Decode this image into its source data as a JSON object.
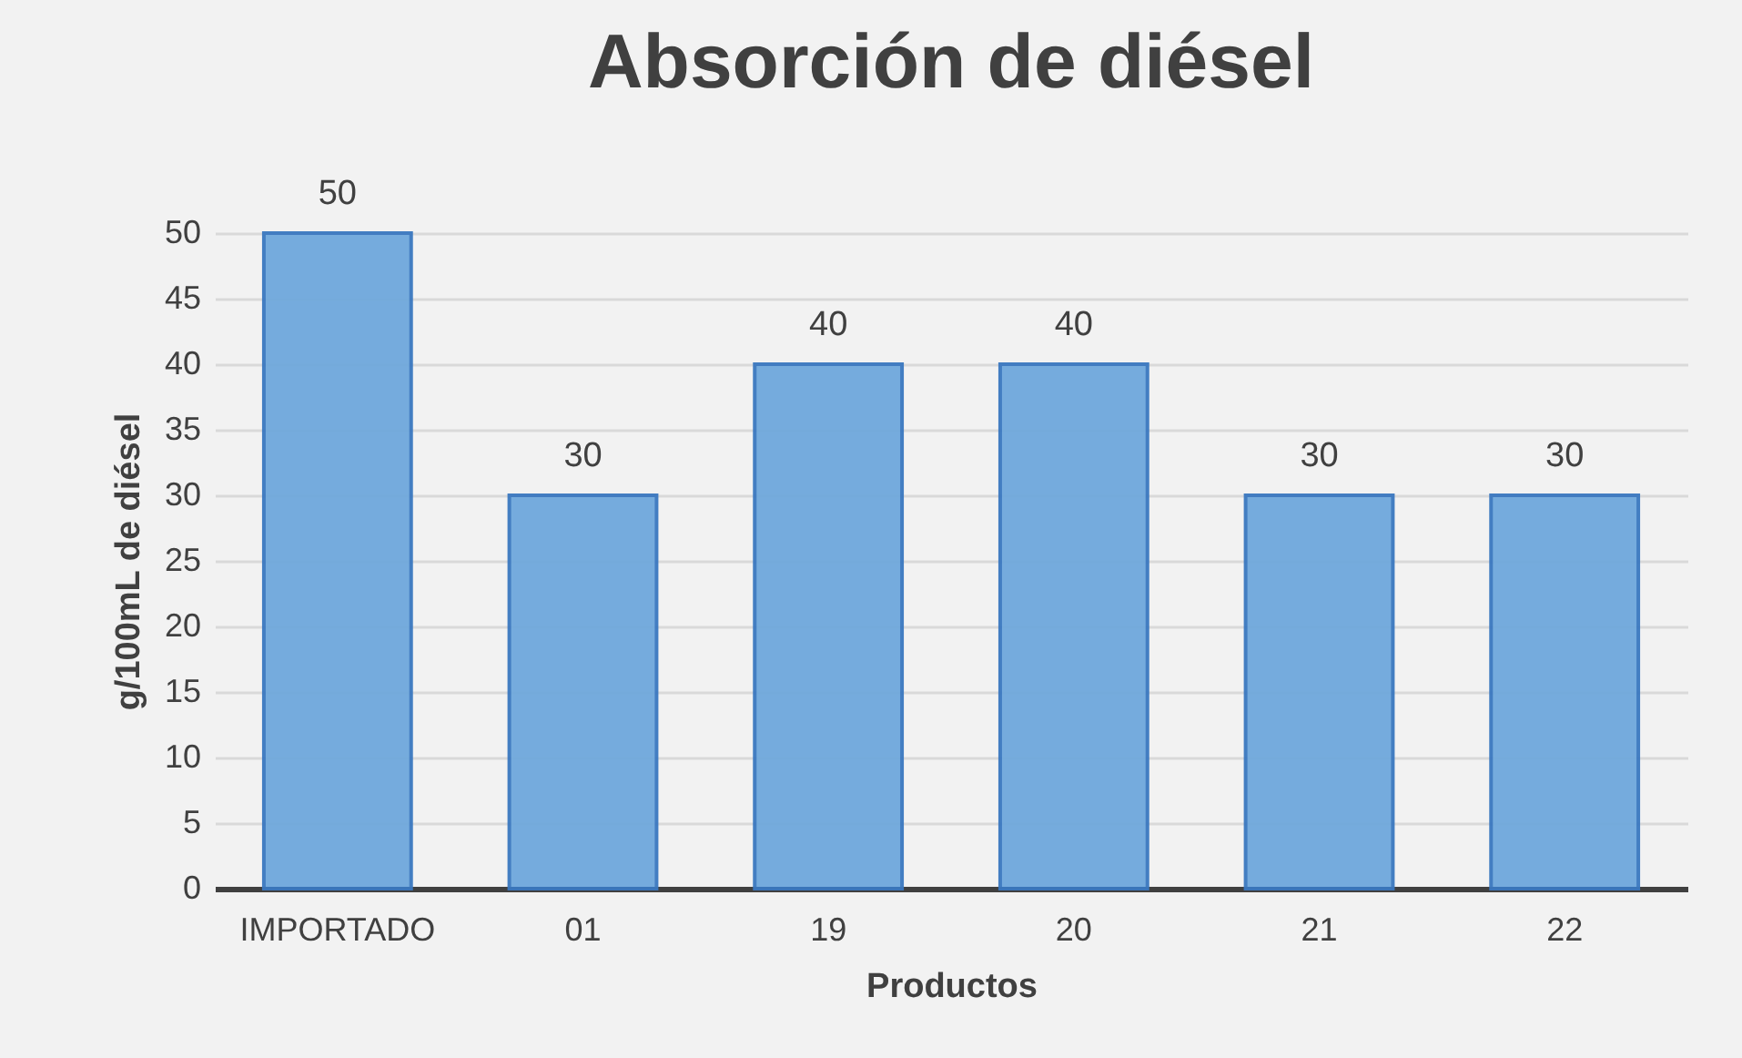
{
  "chart_data": {
    "type": "bar",
    "title": "Absorción de diésel",
    "xlabel": "Productos",
    "ylabel": "g/100mL de diésel",
    "categories": [
      "IMPORTADO",
      "01",
      "19",
      "20",
      "21",
      "22"
    ],
    "values": [
      50,
      30,
      40,
      40,
      30,
      30
    ],
    "color": "#6fa8dc",
    "ylim": [
      0,
      50
    ],
    "yticks": [
      0,
      5,
      10,
      15,
      20,
      25,
      30,
      35,
      40,
      45,
      50
    ],
    "grid": "y",
    "data_labels": true
  }
}
